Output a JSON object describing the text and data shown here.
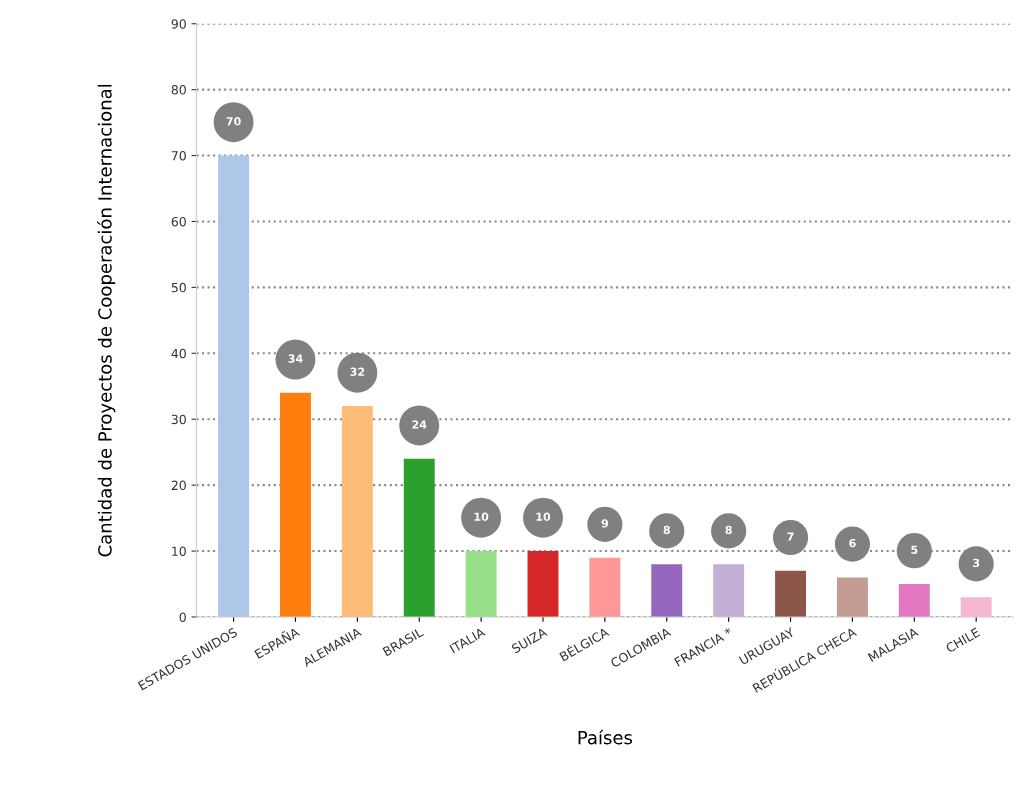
{
  "chart_data": {
    "type": "bar",
    "xlabel": "Países",
    "ylabel": "Cantidad de Proyectos de Cooperación Internacional",
    "categories": [
      "ESTADOS UNIDOS",
      "ESPAÑA",
      "ALEMANIA",
      "BRASIL",
      "ITALIA",
      "SUIZA",
      "BÉLGICA",
      "COLOMBIA",
      "FRANCIA *",
      "URUGUAY",
      "REPÚBLICA CHECA",
      "MALASIA",
      "CHILE"
    ],
    "values": [
      70,
      34,
      32,
      24,
      10,
      10,
      9,
      8,
      8,
      7,
      6,
      5,
      3
    ],
    "colors": [
      "#aec7e8",
      "#ff7f0e",
      "#ffbb78",
      "#2ca02c",
      "#98df8a",
      "#d62728",
      "#ff9896",
      "#9467bd",
      "#c5b0d5",
      "#8c564b",
      "#c49c94",
      "#e377c2",
      "#f7b6d2"
    ],
    "ylim": [
      0,
      90
    ],
    "yticks": [
      0,
      10,
      20,
      30,
      40,
      50,
      60,
      70,
      80,
      90
    ],
    "grid": "y",
    "line_style": "dotted",
    "data_labels": true
  }
}
